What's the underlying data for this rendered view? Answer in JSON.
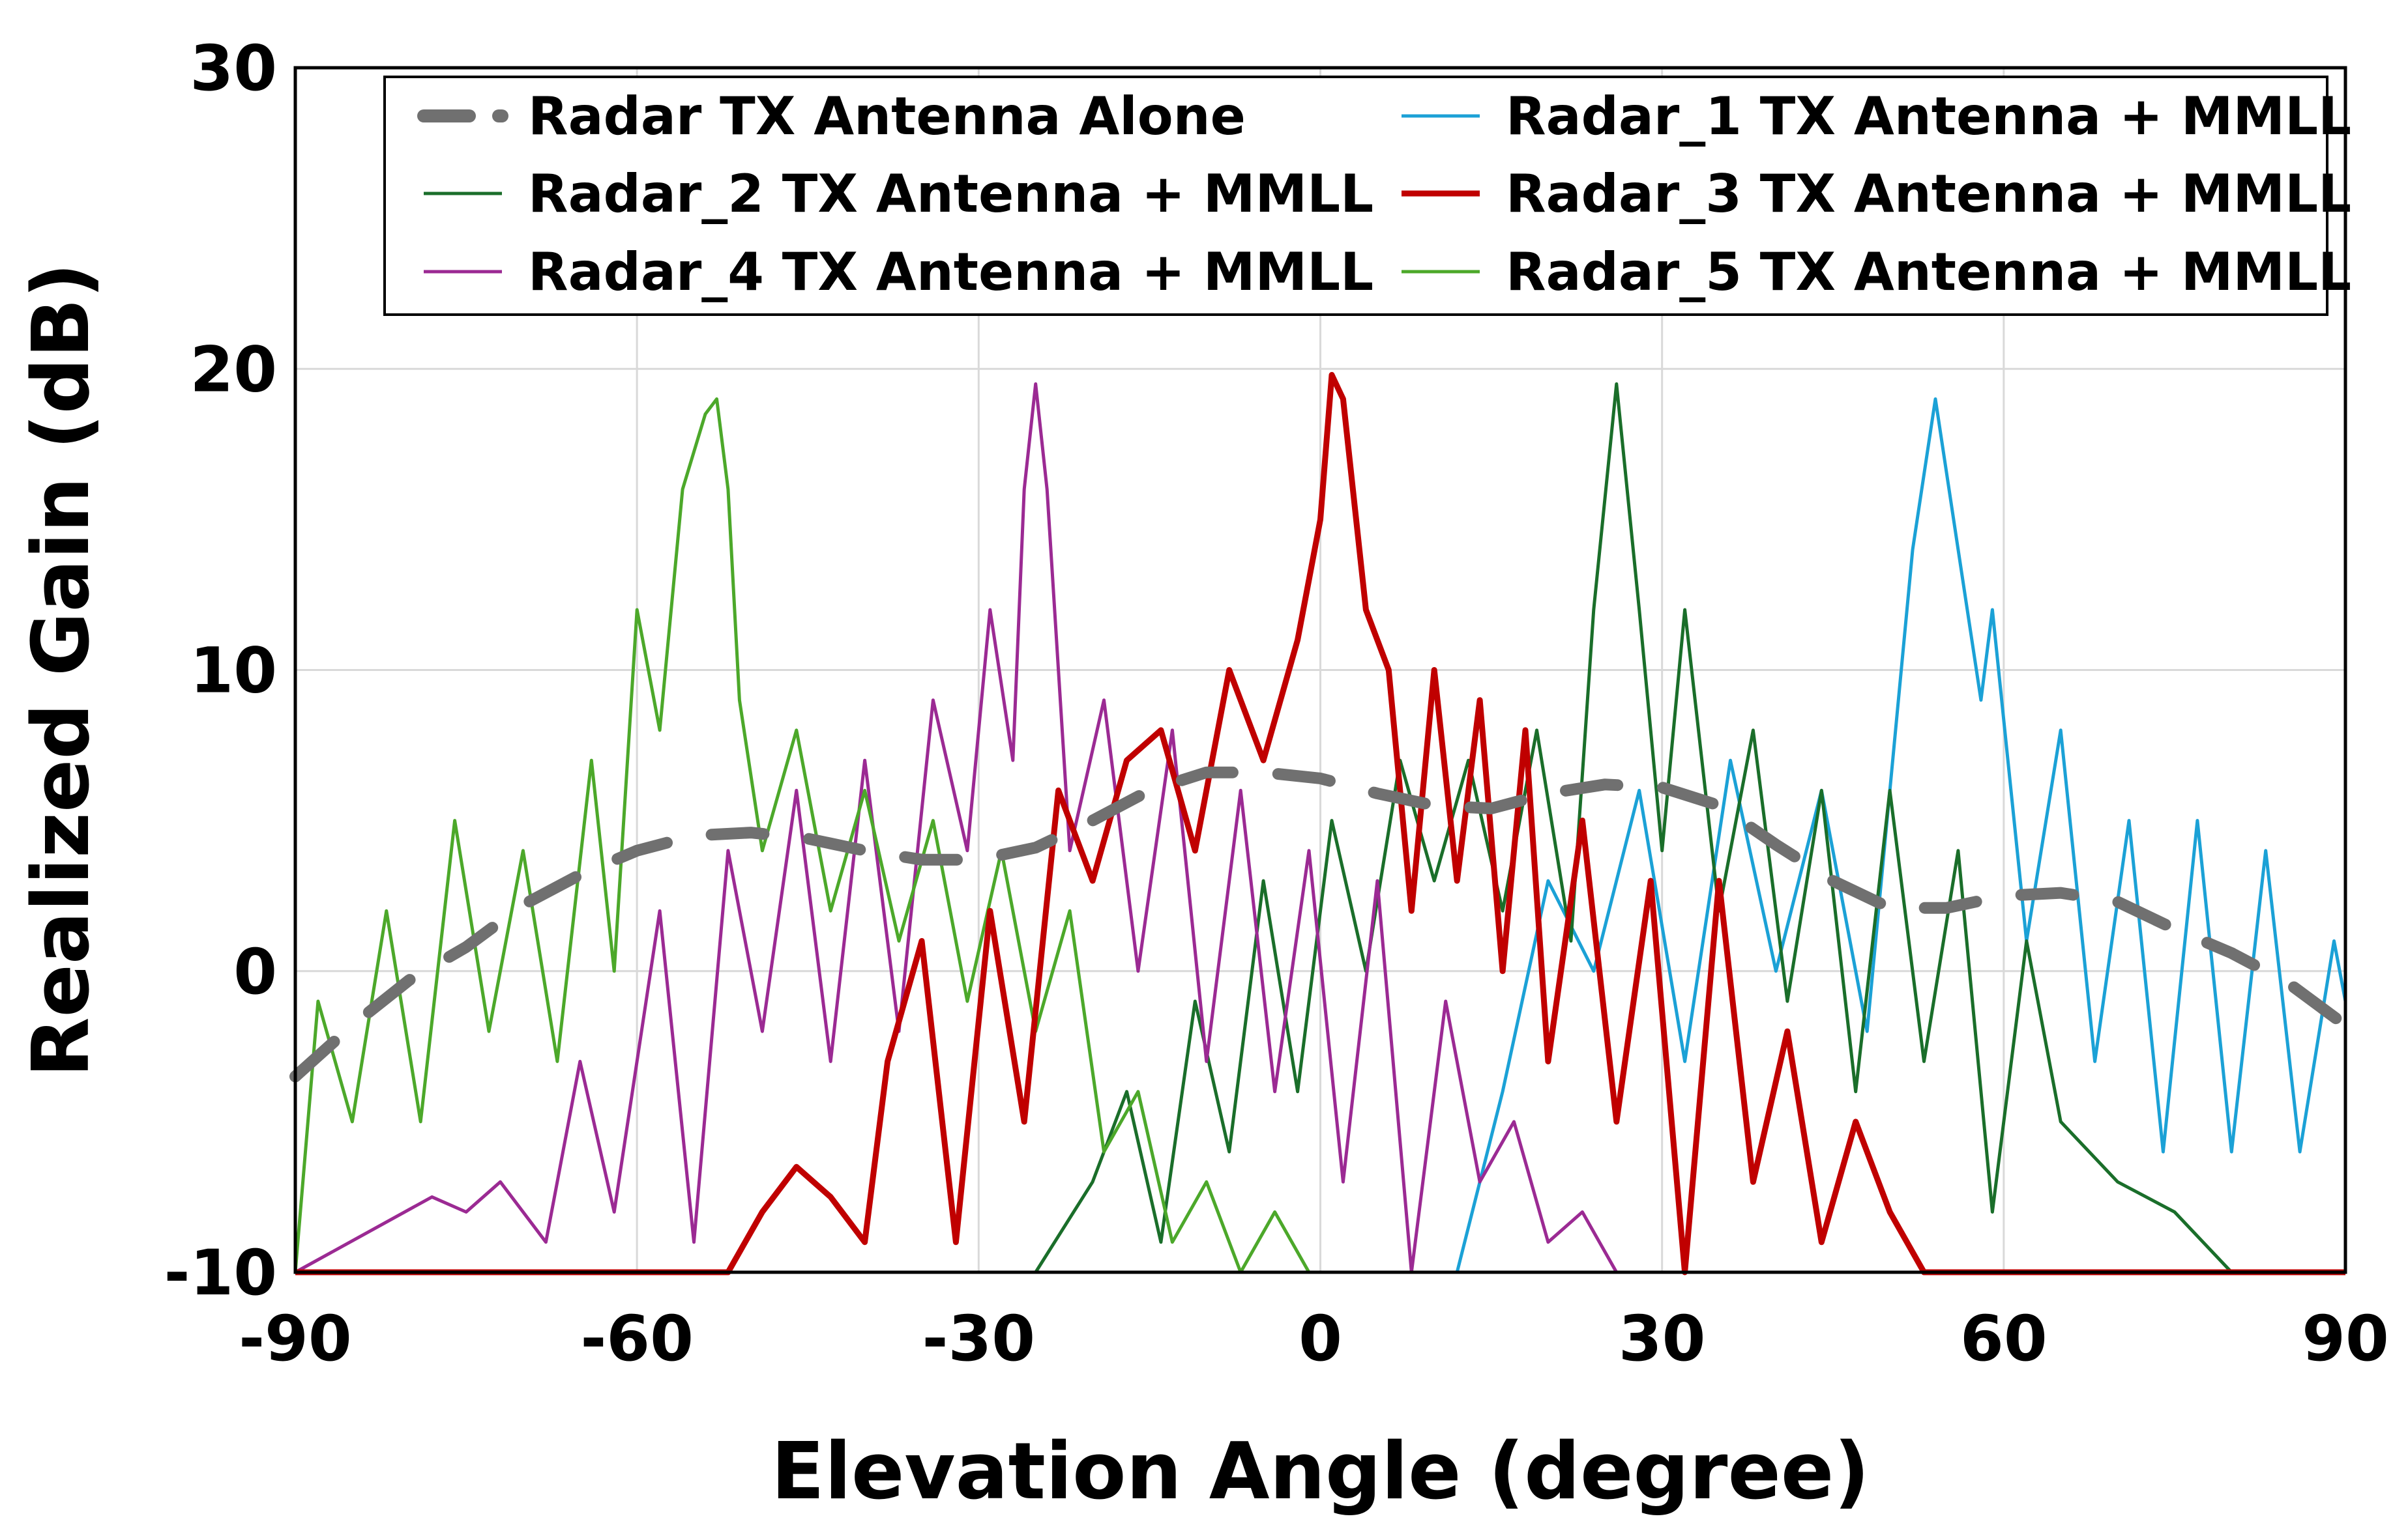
{
  "chart_data": {
    "type": "line",
    "title": "",
    "xlabel": "Elevation Angle (degree)",
    "ylabel": "Realized Gain (dB)",
    "xlim": [
      -90,
      90
    ],
    "ylim": [
      -10,
      30
    ],
    "xticks": [
      -90,
      -60,
      -30,
      0,
      30,
      60,
      90
    ],
    "yticks": [
      -10,
      0,
      10,
      20,
      30
    ],
    "xtick_labels": [
      "-90",
      "-60",
      "-30",
      "0",
      "30",
      "60",
      "90"
    ],
    "ytick_labels": [
      "-10",
      "0",
      "10",
      "20",
      "30"
    ],
    "grid": true,
    "legend_position": "top",
    "series": [
      {
        "name": "Radar TX Antenna Alone",
        "color": "#707070",
        "style": "dashed",
        "x": [
          -90,
          -85,
          -80,
          -75,
          -70,
          -65,
          -60,
          -55,
          -50,
          -45,
          -40,
          -35,
          -30,
          -25,
          -20,
          -15,
          -10,
          -5,
          0,
          5,
          10,
          15,
          20,
          25,
          30,
          35,
          40,
          45,
          50,
          55,
          60,
          65,
          70,
          75,
          80,
          85,
          90
        ],
        "y": [
          -3.5,
          -1.8,
          -0.3,
          0.8,
          2.2,
          3.2,
          4.0,
          4.5,
          4.6,
          4.4,
          4.0,
          3.7,
          3.7,
          4.1,
          5.0,
          6.0,
          6.6,
          6.6,
          6.4,
          5.9,
          5.5,
          5.4,
          5.9,
          6.2,
          6.1,
          5.5,
          4.2,
          3.0,
          2.1,
          2.1,
          2.5,
          2.6,
          2.3,
          1.4,
          0.6,
          -0.4,
          -1.8
        ]
      },
      {
        "name": "Radar_1 TX Antenna + MMLL",
        "color": "#1ba1d6",
        "style": "solid",
        "x": [
          -90,
          -60,
          -30,
          0,
          8,
          12,
          16,
          20,
          24,
          28,
          32,
          36,
          40,
          44,
          48,
          52,
          54,
          56,
          58,
          59,
          62,
          65,
          68,
          71,
          74,
          77,
          80,
          83,
          86,
          89,
          90
        ],
        "y": [
          -10,
          -10,
          -10,
          -10,
          -10,
          -10,
          -4,
          3,
          0,
          6,
          -3,
          7,
          0,
          6,
          -2,
          14,
          19,
          14,
          9,
          12,
          1,
          8,
          -3,
          5,
          -6,
          5,
          -6,
          4,
          -6,
          1,
          -1
        ]
      },
      {
        "name": "Radar_2 TX Antenna + MMLL",
        "color": "#1a6e2a",
        "style": "solid",
        "x": [
          -90,
          -40,
          -25,
          -20,
          -17,
          -14,
          -11,
          -8,
          -5,
          -2,
          1,
          4,
          7,
          10,
          13,
          16,
          19,
          22,
          24,
          26,
          28,
          30,
          32,
          35,
          38,
          41,
          44,
          47,
          50,
          53,
          56,
          59,
          62,
          65,
          70,
          75,
          80,
          90
        ],
        "y": [
          -10,
          -10,
          -10,
          -7,
          -4,
          -9,
          -1,
          -6,
          3,
          -4,
          5,
          0,
          7,
          3,
          7,
          2,
          8,
          1,
          12,
          19.5,
          12,
          4,
          12,
          2,
          8,
          -1,
          6,
          -4,
          6,
          -3,
          4,
          -8,
          1,
          -5,
          -7,
          -8,
          -10,
          -10
        ]
      },
      {
        "name": "Radar_3 TX Antenna + MMLL",
        "color": "#c00000",
        "style": "solid",
        "x": [
          -90,
          -52,
          -49,
          -46,
          -43,
          -40,
          -38,
          -35,
          -32,
          -29,
          -26,
          -23,
          -20,
          -17,
          -14,
          -11,
          -8,
          -5,
          -2,
          0,
          1,
          2,
          4,
          6,
          8,
          10,
          12,
          14,
          16,
          18,
          20,
          23,
          26,
          29,
          32,
          35,
          38,
          41,
          44,
          47,
          50,
          53,
          90
        ],
        "y": [
          -10,
          -10,
          -8,
          -6.5,
          -7.5,
          -9,
          -3,
          1,
          -9,
          2,
          -5,
          6,
          3,
          7,
          8,
          4,
          10,
          7,
          11,
          15,
          19.8,
          19,
          12,
          10,
          2,
          10,
          3,
          9,
          0,
          8,
          -3,
          5,
          -5,
          3,
          -10,
          3,
          -7,
          -2,
          -9,
          -5,
          -8,
          -10,
          -10
        ]
      },
      {
        "name": "Radar_4 TX Antenna + MMLL",
        "color": "#9b2a93",
        "style": "solid",
        "x": [
          -90,
          -78,
          -75,
          -72,
          -68,
          -65,
          -62,
          -58,
          -55,
          -52,
          -49,
          -46,
          -43,
          -40,
          -37,
          -34,
          -31,
          -29,
          -27,
          -26,
          -25,
          -24,
          -22,
          -19,
          -16,
          -13,
          -10,
          -7,
          -4,
          -1,
          2,
          5,
          8,
          11,
          14,
          17,
          20,
          23,
          26,
          90
        ],
        "y": [
          -10,
          -7.5,
          -8,
          -7,
          -9,
          -3,
          -8,
          2,
          -9,
          4,
          -2,
          6,
          -3,
          7,
          -2,
          9,
          4,
          12,
          7,
          16,
          19.5,
          16,
          4,
          9,
          0,
          8,
          -3,
          6,
          -4,
          4,
          -7,
          3,
          -10,
          -1,
          -7,
          -5,
          -9,
          -8,
          -10,
          -10
        ]
      },
      {
        "name": "Radar_5 TX Antenna + MMLL",
        "color": "#4ca82a",
        "style": "solid",
        "x": [
          -90,
          -88,
          -85,
          -82,
          -79,
          -76,
          -73,
          -70,
          -67,
          -64,
          -62,
          -60,
          -58,
          -56,
          -54,
          -53,
          -52,
          -51,
          -49,
          -46,
          -43,
          -40,
          -37,
          -34,
          -31,
          -28,
          -25,
          -22,
          -19,
          -16,
          -13,
          -10,
          -7,
          -4,
          -1,
          2,
          5,
          90
        ],
        "y": [
          -10,
          -1,
          -5,
          2,
          -5,
          5,
          -2,
          4,
          -3,
          7,
          0,
          12,
          8,
          16,
          18.5,
          19,
          16,
          9,
          4,
          8,
          2,
          6,
          1,
          5,
          -1,
          4,
          -2,
          2,
          -6,
          -4,
          -9,
          -7,
          -10,
          -8,
          -10,
          -10,
          -10,
          -10
        ]
      }
    ]
  }
}
